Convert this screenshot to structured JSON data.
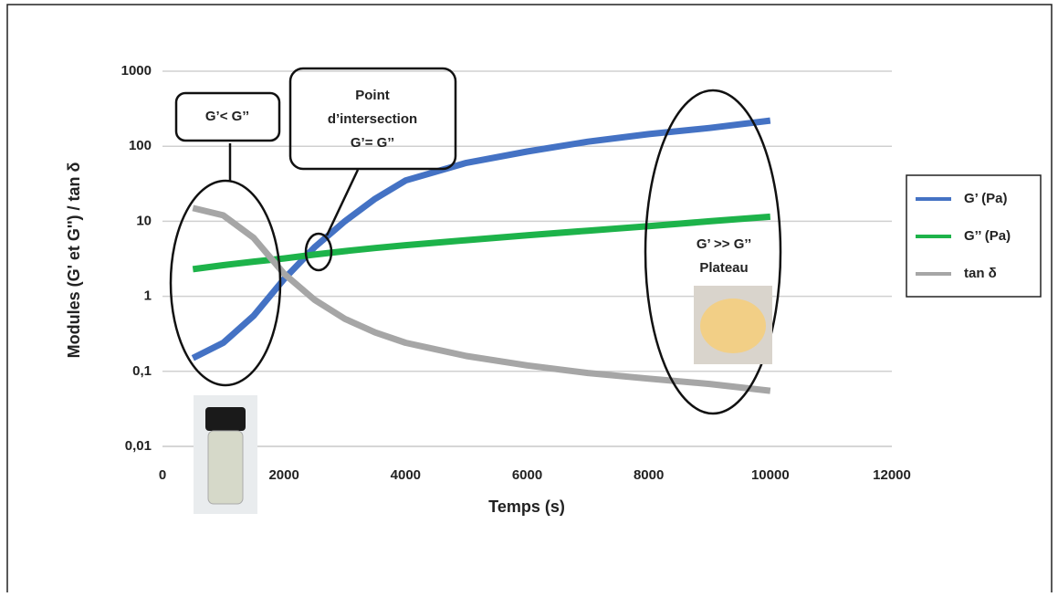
{
  "chart_data": {
    "type": "line",
    "xlabel": "Temps (s)",
    "ylabel": "Modules (G' et G'') / tan δ",
    "x": [
      500,
      1000,
      1500,
      2000,
      2500,
      3000,
      3500,
      4000,
      5000,
      6000,
      7000,
      8000,
      9000,
      10000
    ],
    "series": [
      {
        "name": "G’ (Pa)",
        "color": "#4472c4",
        "values": [
          0.15,
          0.24,
          0.55,
          1.7,
          4.5,
          10,
          20,
          35,
          60,
          85,
          115,
          145,
          175,
          220
        ]
      },
      {
        "name": "G’’ (Pa)",
        "color": "#1db34a",
        "values": [
          2.3,
          2.6,
          2.9,
          3.2,
          3.6,
          4,
          4.4,
          4.8,
          5.6,
          6.5,
          7.5,
          8.6,
          10,
          11.5
        ]
      },
      {
        "name": "tan δ",
        "color": "#a6a6a6",
        "values": [
          15,
          12,
          6,
          2,
          0.9,
          0.5,
          0.33,
          0.24,
          0.16,
          0.12,
          0.095,
          0.08,
          0.068,
          0.055
        ]
      }
    ],
    "xlim": [
      0,
      12000
    ],
    "xticks": [
      0,
      2000,
      4000,
      6000,
      8000,
      10000,
      12000
    ],
    "ylim": [
      0.01,
      1000
    ],
    "yticks": [
      {
        "value": 0.01,
        "label": "0,01"
      },
      {
        "value": 0.1,
        "label": "0,1"
      },
      1,
      10,
      100,
      1000
    ],
    "log_y": true,
    "grid": true,
    "legend": "right",
    "annotations": {
      "left": "G’< G’’",
      "intersection": [
        "Point",
        "d’intersection",
        "G’= G’’"
      ],
      "right": [
        "G’ >> G’’",
        "Plateau"
      ]
    }
  }
}
